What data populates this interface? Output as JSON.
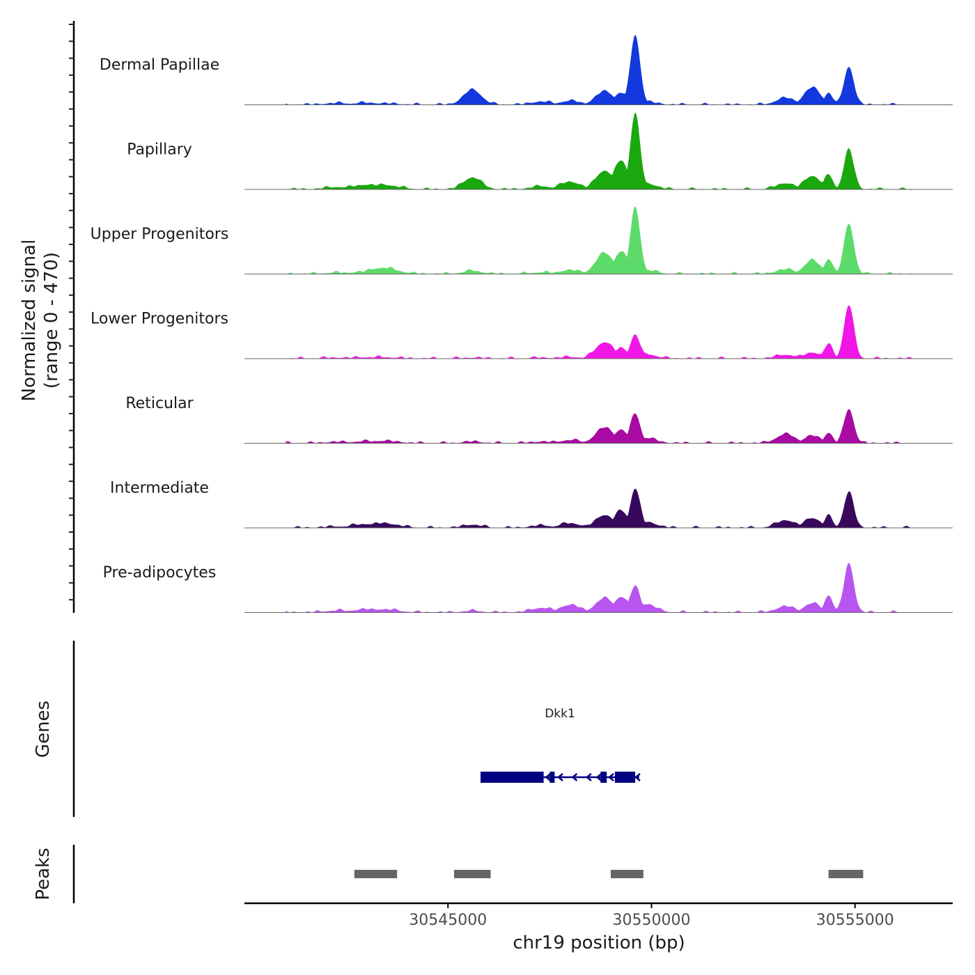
{
  "chart_data": {
    "type": "area",
    "title": "",
    "chromosome": "chr19",
    "xlabel": "chr19 position (bp)",
    "ylabel_line1": "Normalized signal",
    "ylabel_line2": "(range 0 - 470)",
    "xlim": [
      30540000,
      30557400
    ],
    "ylim": [
      0,
      470
    ],
    "x_ticks": [
      30545000,
      30550000,
      30555000
    ],
    "x_tick_labels": [
      "30545000",
      "30550000",
      "30555000"
    ],
    "coverage_peaks": [
      {
        "x": 30542300,
        "w": 300
      },
      {
        "x": 30543000,
        "w": 350
      },
      {
        "x": 30543400,
        "w": 350
      },
      {
        "x": 30545600,
        "w": 220
      },
      {
        "x": 30547300,
        "w": 250
      },
      {
        "x": 30548000,
        "w": 250
      },
      {
        "x": 30548850,
        "w": 220
      },
      {
        "x": 30549250,
        "w": 170
      },
      {
        "x": 30549600,
        "w": 120
      },
      {
        "x": 30549850,
        "w": 250
      },
      {
        "x": 30553300,
        "w": 230
      },
      {
        "x": 30553950,
        "w": 200
      },
      {
        "x": 30554350,
        "w": 100
      },
      {
        "x": 30554850,
        "w": 120
      }
    ],
    "tracks": [
      {
        "name": "Dermal Papillae",
        "color": "#1338dd",
        "heights": [
          10,
          12,
          8,
          100,
          20,
          25,
          90,
          80,
          470,
          20,
          45,
          115,
          80,
          255
        ]
      },
      {
        "name": "Papillary",
        "color": "#1aa80e",
        "heights": [
          15,
          30,
          30,
          80,
          20,
          50,
          125,
          195,
          510,
          40,
          40,
          90,
          100,
          270
        ]
      },
      {
        "name": "Upper Progenitors",
        "color": "#5ddb6a",
        "heights": [
          8,
          15,
          40,
          20,
          10,
          25,
          140,
          150,
          450,
          25,
          30,
          90,
          100,
          340
        ]
      },
      {
        "name": "Lower Progenitors",
        "color": "#f017e6",
        "heights": [
          5,
          8,
          8,
          5,
          5,
          10,
          110,
          70,
          160,
          30,
          25,
          40,
          100,
          360
        ]
      },
      {
        "name": "Reticular",
        "color": "#a90aa2",
        "heights": [
          8,
          12,
          15,
          10,
          10,
          20,
          105,
          90,
          200,
          35,
          60,
          50,
          70,
          230
        ]
      },
      {
        "name": "Intermediate",
        "color": "#38085d",
        "heights": [
          8,
          25,
          30,
          20,
          15,
          30,
          85,
          115,
          265,
          40,
          50,
          65,
          80,
          240
        ]
      },
      {
        "name": "Pre-adipocytes",
        "color": "#b855ef",
        "heights": [
          12,
          20,
          20,
          10,
          30,
          50,
          95,
          105,
          180,
          55,
          40,
          60,
          115,
          330
        ]
      }
    ],
    "genes_label": "Genes",
    "gene": {
      "name": "Dkk1",
      "start": 30545800,
      "end": 30549700,
      "strand": "-",
      "color": "#000080",
      "exons": [
        [
          30545800,
          30547350
        ],
        [
          30547500,
          30547620
        ],
        [
          30548750,
          30548900
        ],
        [
          30549100,
          30549600
        ]
      ]
    },
    "peaks_label": "Peaks",
    "peaks_color": "#666666",
    "peaks": [
      [
        30542700,
        30543750
      ],
      [
        30545150,
        30546050
      ],
      [
        30549000,
        30549800
      ],
      [
        30554350,
        30555200
      ]
    ]
  }
}
